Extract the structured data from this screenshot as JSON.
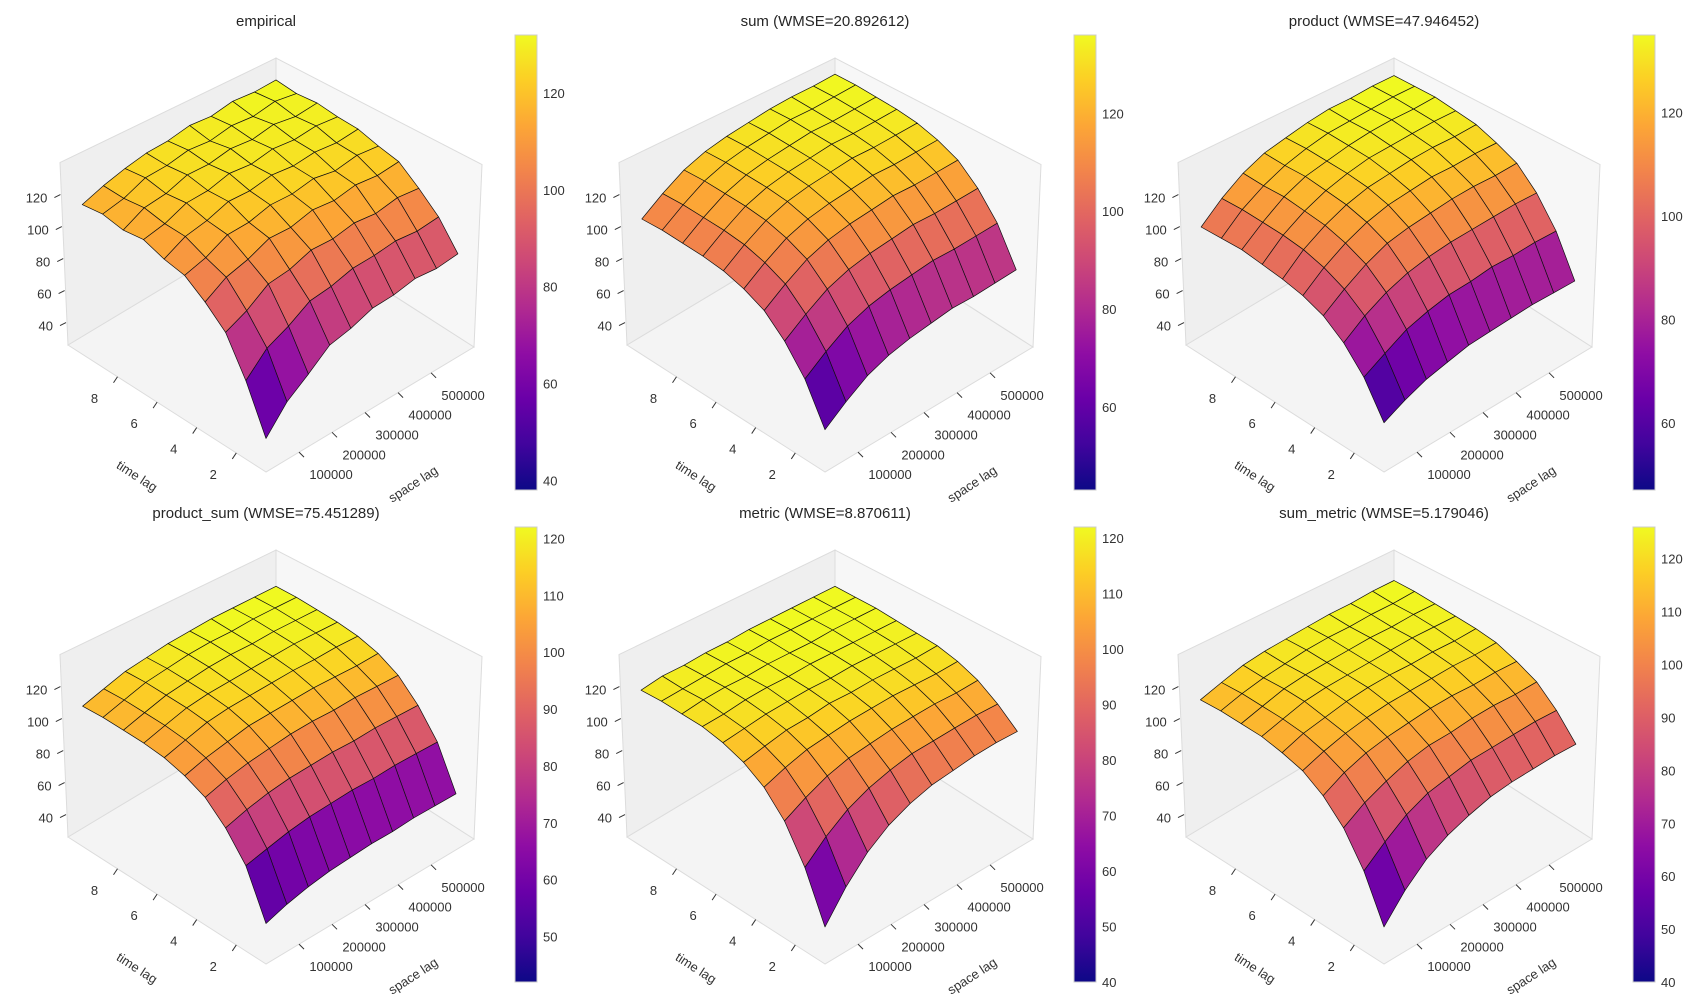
{
  "chart_data": {
    "type": "surface3d",
    "layout": "2 rows x 3 columns",
    "colormap": {
      "name": "plasma",
      "stops": [
        "#0d0887",
        "#41049d",
        "#6a00a8",
        "#8f0da4",
        "#b12a90",
        "#cc4778",
        "#e16462",
        "#f2844b",
        "#fca636",
        "#fcce25",
        "#f0f921"
      ]
    },
    "xlabel": "time lag",
    "ylabel": "space lag",
    "time_lag": [
      1,
      2,
      3,
      4,
      5,
      6,
      7,
      8,
      9,
      10
    ],
    "space_lag": [
      30000,
      93000,
      157000,
      220000,
      283000,
      347000,
      410000,
      473000,
      537000,
      600000
    ],
    "time_lim": [
      0.5,
      10.5
    ],
    "space_lim": [
      0,
      630000
    ],
    "z_lim": [
      26,
      140
    ],
    "time_ticks": [
      "2",
      "4",
      "6",
      "8"
    ],
    "space_ticks": [
      "100000",
      "200000",
      "300000",
      "400000",
      "500000"
    ],
    "z_ticks": [
      "40",
      "60",
      "80",
      "100",
      "120"
    ],
    "grid": false,
    "panels": [
      {
        "title": "empirical",
        "colorbar_ticks": [
          "40",
          "60",
          "80",
          "100",
          "120"
        ],
        "z": [
          [
            38,
            52,
            61,
            71,
            74,
            79,
            80,
            83,
            82,
            84
          ],
          [
            64,
            76,
            82,
            90,
            92,
            96,
            97,
            99,
            98,
            100
          ],
          [
            85,
            91,
            100,
            102,
            107,
            107,
            110,
            109,
            112,
            111
          ],
          [
            96,
            104,
            108,
            114,
            114,
            118,
            117,
            120,
            119,
            121
          ],
          [
            105,
            109,
            116,
            117,
            121,
            121,
            124,
            122,
            125,
            124
          ],
          [
            108,
            115,
            118,
            123,
            123,
            126,
            125,
            127,
            126,
            128
          ],
          [
            113,
            116,
            122,
            123,
            127,
            126,
            129,
            128,
            130,
            129
          ],
          [
            112,
            119,
            121,
            126,
            126,
            129,
            128,
            131,
            129,
            131
          ],
          [
            115,
            118,
            124,
            125,
            128,
            127,
            130,
            129,
            132,
            130
          ],
          [
            114,
            119,
            123,
            126,
            127,
            130,
            129,
            132,
            131,
            132
          ]
        ]
      },
      {
        "title": "sum (WMSE=20.892612)",
        "colorbar_ticks": [
          "60",
          "80",
          "100",
          "120"
        ],
        "z": [
          [
            43,
            52,
            60,
            65,
            68,
            70,
            72,
            72,
            73,
            74
          ],
          [
            65,
            74,
            82,
            87,
            90,
            92,
            94,
            94,
            95,
            96
          ],
          [
            80,
            89,
            97,
            102,
            105,
            107,
            109,
            109,
            110,
            111
          ],
          [
            91,
            100,
            108,
            113,
            116,
            118,
            120,
            120,
            121,
            122
          ],
          [
            97,
            106,
            114,
            119,
            122,
            124,
            126,
            126,
            127,
            128
          ],
          [
            101,
            110,
            118,
            123,
            126,
            128,
            130,
            130,
            131,
            132
          ],
          [
            103,
            112,
            120,
            125,
            128,
            130,
            132,
            132,
            133,
            134
          ],
          [
            104,
            113,
            121,
            126,
            129,
            131,
            133,
            133,
            134,
            135
          ],
          [
            105,
            114,
            122,
            127,
            130,
            132,
            134,
            134,
            135,
            136
          ],
          [
            105,
            114,
            122,
            127,
            130,
            132,
            134,
            135,
            135,
            136
          ]
        ]
      },
      {
        "title": "product (WMSE=47.946452)",
        "colorbar_ticks": [
          "60",
          "80",
          "100",
          "120"
        ],
        "z": [
          [
            47,
            53,
            58,
            61,
            64,
            65,
            66,
            67,
            67,
            67
          ],
          [
            66,
            73,
            80,
            84,
            87,
            88,
            90,
            90,
            91,
            91
          ],
          [
            79,
            88,
            95,
            100,
            103,
            105,
            106,
            107,
            108,
            108
          ],
          [
            88,
            97,
            105,
            111,
            114,
            116,
            118,
            119,
            119,
            120
          ],
          [
            93,
            103,
            111,
            117,
            121,
            123,
            125,
            125,
            126,
            126
          ],
          [
            96,
            107,
            115,
            121,
            125,
            127,
            129,
            130,
            130,
            131
          ],
          [
            98,
            109,
            117,
            123,
            127,
            130,
            131,
            132,
            133,
            133
          ],
          [
            100,
            110,
            119,
            125,
            128,
            131,
            133,
            134,
            134,
            135
          ],
          [
            100,
            111,
            119,
            125,
            129,
            132,
            133,
            134,
            135,
            135
          ],
          [
            100,
            111,
            120,
            126,
            129,
            132,
            134,
            134,
            135,
            135
          ]
        ]
      },
      {
        "title": "product_sum (WMSE=75.451289)",
        "colorbar_ticks": [
          "50",
          "60",
          "70",
          "80",
          "90",
          "100",
          "110",
          "120"
        ],
        "z": [
          [
            42,
            46,
            49,
            51,
            52,
            53,
            53,
            54,
            54,
            54
          ],
          [
            68,
            71,
            74,
            76,
            77,
            78,
            78,
            79,
            79,
            79
          ],
          [
            83,
            87,
            90,
            92,
            93,
            94,
            94,
            95,
            95,
            95
          ],
          [
            94,
            98,
            101,
            103,
            105,
            106,
            106,
            107,
            107,
            107
          ],
          [
            100,
            104,
            107,
            110,
            111,
            112,
            113,
            113,
            113,
            114
          ],
          [
            104,
            108,
            112,
            114,
            115,
            116,
            117,
            117,
            118,
            118
          ],
          [
            106,
            110,
            114,
            116,
            117,
            118,
            119,
            120,
            120,
            120
          ],
          [
            107,
            111,
            115,
            117,
            119,
            120,
            120,
            121,
            121,
            121
          ],
          [
            108,
            112,
            116,
            118,
            120,
            121,
            121,
            122,
            122,
            122
          ],
          [
            108,
            112,
            116,
            118,
            120,
            121,
            122,
            122,
            122,
            122
          ]
        ]
      },
      {
        "title": "metric (WMSE=8.870611)",
        "colorbar_ticks": [
          "40",
          "50",
          "60",
          "70",
          "80",
          "90",
          "100",
          "110",
          "120"
        ],
        "z": [
          [
            40,
            56,
            69,
            78,
            84,
            88,
            90,
            92,
            93,
            93
          ],
          [
            67,
            78,
            87,
            93,
            97,
            100,
            101,
            102,
            103,
            103
          ],
          [
            87,
            94,
            100,
            104,
            106,
            108,
            109,
            110,
            110,
            111
          ],
          [
            100,
            105,
            109,
            111,
            113,
            114,
            115,
            115,
            115,
            116
          ],
          [
            108,
            111,
            114,
            115,
            117,
            117,
            118,
            118,
            118,
            119
          ],
          [
            113,
            115,
            117,
            118,
            119,
            119,
            120,
            120,
            120,
            120
          ],
          [
            116,
            117,
            119,
            120,
            120,
            121,
            121,
            121,
            121,
            121
          ],
          [
            117,
            119,
            120,
            120,
            121,
            121,
            121,
            122,
            122,
            122
          ],
          [
            118,
            119,
            120,
            121,
            121,
            122,
            122,
            122,
            122,
            122
          ],
          [
            118,
            120,
            120,
            121,
            121,
            122,
            122,
            122,
            122,
            122
          ]
        ]
      },
      {
        "title": "sum_metric (WMSE=5.179046)",
        "colorbar_ticks": [
          "40",
          "50",
          "60",
          "70",
          "80",
          "90",
          "100",
          "110",
          "120"
        ],
        "z": [
          [
            40,
            54,
            65,
            72,
            77,
            81,
            83,
            84,
            85,
            85
          ],
          [
            65,
            75,
            84,
            90,
            93,
            96,
            97,
            98,
            99,
            99
          ],
          [
            83,
            91,
            97,
            102,
            105,
            106,
            108,
            109,
            109,
            110
          ],
          [
            95,
            102,
            107,
            110,
            112,
            114,
            115,
            115,
            116,
            116
          ],
          [
            103,
            108,
            112,
            115,
            117,
            118,
            119,
            120,
            120,
            121
          ],
          [
            107,
            112,
            115,
            118,
            120,
            121,
            121,
            122,
            122,
            123
          ],
          [
            110,
            114,
            118,
            120,
            121,
            122,
            123,
            124,
            124,
            124
          ],
          [
            111,
            115,
            119,
            121,
            122,
            123,
            124,
            124,
            125,
            125
          ],
          [
            112,
            116,
            119,
            121,
            123,
            124,
            124,
            125,
            125,
            126
          ],
          [
            112,
            116,
            120,
            122,
            123,
            124,
            125,
            125,
            126,
            126
          ]
        ]
      }
    ]
  }
}
